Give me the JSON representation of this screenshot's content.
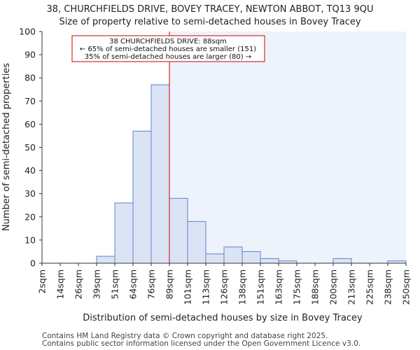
{
  "chart_data": {
    "type": "bar",
    "title": "38, CHURCHFIELDS DRIVE, BOVEY TRACEY, NEWTON ABBOT, TQ13 9QU",
    "subtitle": "Size of property relative to semi-detached houses in Bovey Tracey",
    "xlabel": "Distribution of semi-detached houses by size in Bovey Tracey",
    "ylabel": "Number of semi-detached properties",
    "ylim": [
      0,
      100
    ],
    "yticks": [
      0,
      10,
      20,
      30,
      40,
      50,
      60,
      70,
      80,
      90,
      100
    ],
    "bin_edges": [
      "2sqm",
      "14sqm",
      "26sqm",
      "39sqm",
      "51sqm",
      "64sqm",
      "76sqm",
      "89sqm",
      "101sqm",
      "113sqm",
      "126sqm",
      "138sqm",
      "151sqm",
      "163sqm",
      "175sqm",
      "188sqm",
      "200sqm",
      "213sqm",
      "225sqm",
      "238sqm",
      "250sqm"
    ],
    "values": [
      0,
      0,
      0,
      3,
      26,
      57,
      77,
      28,
      18,
      4,
      7,
      5,
      2,
      1,
      0,
      0,
      2,
      0,
      0,
      1
    ],
    "marker": {
      "value_sqm": 88,
      "bin_position": 7,
      "color": "#cc0000",
      "annotation_lines": [
        "38 CHURCHFIELDS DRIVE: 88sqm",
        "← 65% of semi-detached houses are smaller (151)",
        "35% of semi-detached houses are larger (80) →"
      ]
    },
    "colors": {
      "bar_fill": "#dbe4f5",
      "bar_edge": "#5c85c8",
      "highlight_bg": "#eef2fb",
      "axis": "#333333"
    },
    "grid": false
  },
  "footer": {
    "line1": "Contains HM Land Registry data © Crown copyright and database right 2025.",
    "line2": "Contains public sector information licensed under the Open Government Licence v3.0."
  }
}
